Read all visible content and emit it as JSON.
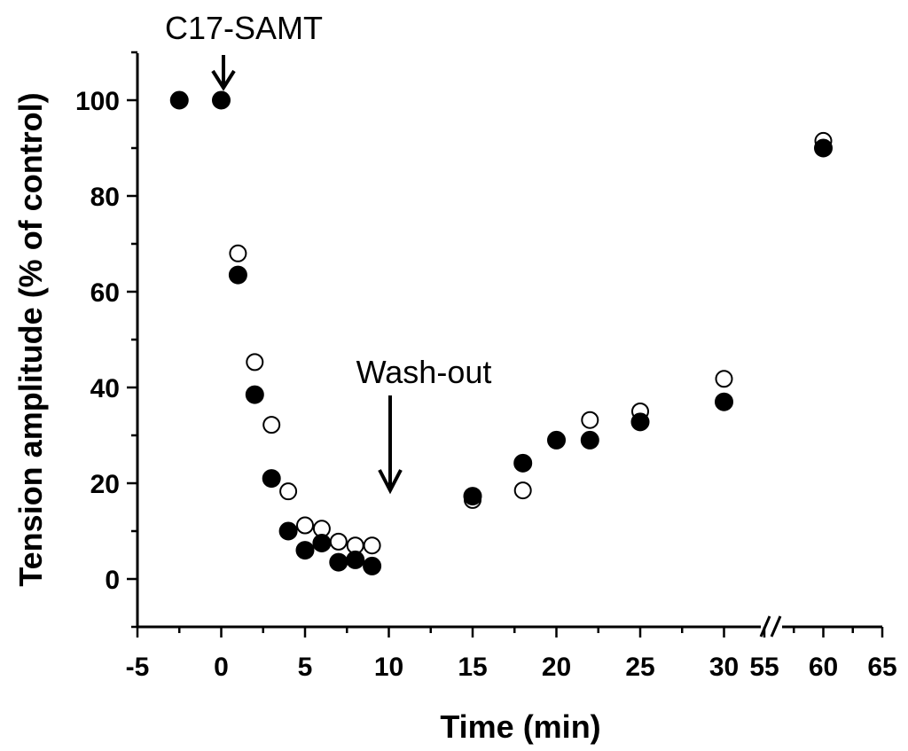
{
  "chart_data": {
    "type": "scatter",
    "title": "",
    "xlabel": "Time (min)",
    "ylabel": "Tension amplitude (% of control)",
    "xlim": [
      -5,
      65
    ],
    "ylim": [
      -10,
      110
    ],
    "axis_break": {
      "between": [
        30,
        55
      ]
    },
    "x_ticks": [
      {
        "value": -5,
        "label": "-5"
      },
      {
        "value": 0,
        "label": "0"
      },
      {
        "value": 5,
        "label": "5"
      },
      {
        "value": 10,
        "label": "10"
      },
      {
        "value": 15,
        "label": "15"
      },
      {
        "value": 20,
        "label": "20"
      },
      {
        "value": 25,
        "label": "25"
      },
      {
        "value": 30,
        "label": "30"
      },
      {
        "value": 55,
        "label": "55"
      },
      {
        "value": 60,
        "label": "60"
      },
      {
        "value": 65,
        "label": "65"
      }
    ],
    "y_ticks": [
      {
        "value": 0,
        "label": "0"
      },
      {
        "value": 20,
        "label": "20"
      },
      {
        "value": 40,
        "label": "40"
      },
      {
        "value": 60,
        "label": "60"
      },
      {
        "value": 80,
        "label": "80"
      },
      {
        "value": 100,
        "label": "100"
      }
    ],
    "series": [
      {
        "name": "filled",
        "marker": "filled-circle",
        "color": "#000000",
        "points": [
          {
            "x": -2.5,
            "y": 100
          },
          {
            "x": 0,
            "y": 100
          },
          {
            "x": 1,
            "y": 63.5
          },
          {
            "x": 2,
            "y": 38.5
          },
          {
            "x": 3,
            "y": 21
          },
          {
            "x": 4,
            "y": 10
          },
          {
            "x": 5,
            "y": 6
          },
          {
            "x": 6,
            "y": 7.5
          },
          {
            "x": 7,
            "y": 3.5
          },
          {
            "x": 8,
            "y": 4
          },
          {
            "x": 9,
            "y": 2.7
          },
          {
            "x": 15,
            "y": 17.3
          },
          {
            "x": 18,
            "y": 24.2
          },
          {
            "x": 20,
            "y": 29
          },
          {
            "x": 22,
            "y": 29
          },
          {
            "x": 25,
            "y": 32.8
          },
          {
            "x": 30,
            "y": 37
          },
          {
            "x": 60,
            "y": 90
          }
        ]
      },
      {
        "name": "open",
        "marker": "open-circle",
        "color": "#000000",
        "points": [
          {
            "x": 1,
            "y": 68
          },
          {
            "x": 2,
            "y": 45.3
          },
          {
            "x": 3,
            "y": 32.2
          },
          {
            "x": 4,
            "y": 18.3
          },
          {
            "x": 5,
            "y": 11.2
          },
          {
            "x": 6,
            "y": 10.5
          },
          {
            "x": 7,
            "y": 7.8
          },
          {
            "x": 8,
            "y": 7
          },
          {
            "x": 9,
            "y": 7
          },
          {
            "x": 15,
            "y": 16.5
          },
          {
            "x": 18,
            "y": 18.5
          },
          {
            "x": 22,
            "y": 33.2
          },
          {
            "x": 25,
            "y": 35
          },
          {
            "x": 30,
            "y": 41.8
          },
          {
            "x": 60,
            "y": 91.5
          }
        ]
      }
    ],
    "annotations": [
      {
        "text": "C17-SAMT",
        "x": 0,
        "y": 100
      },
      {
        "text": "Wash-out",
        "x": 10,
        "y": 17
      }
    ]
  }
}
